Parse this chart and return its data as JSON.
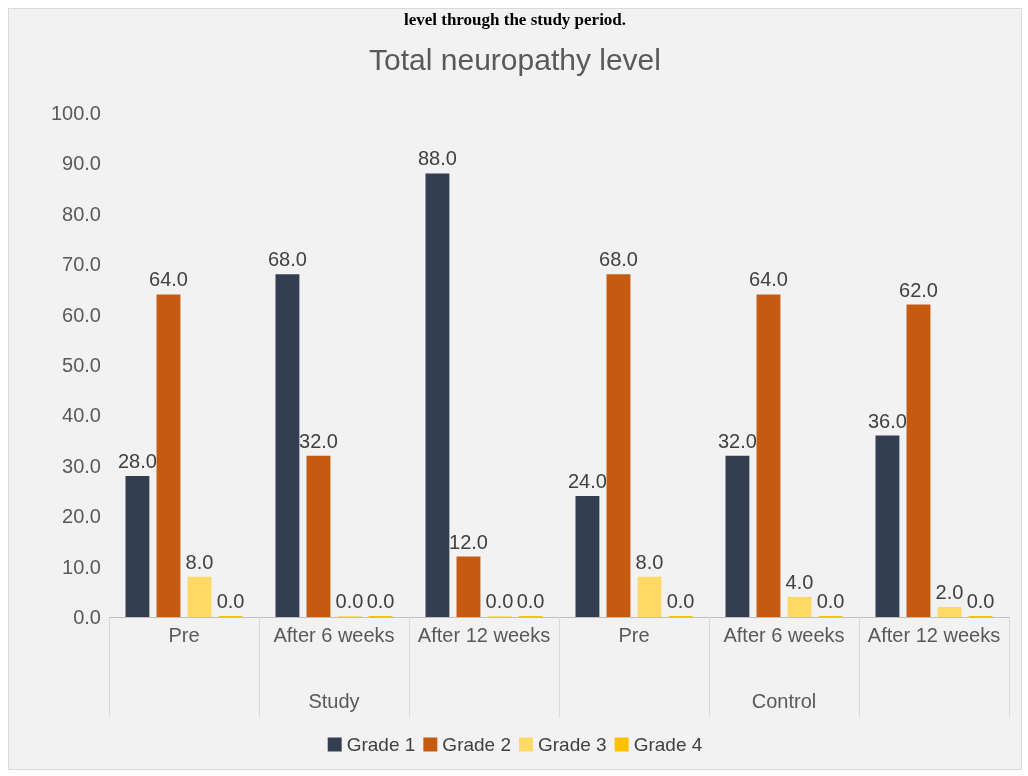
{
  "chart_data": {
    "type": "bar",
    "title": "Total neuropathy level",
    "categories": [
      "Pre",
      "After 6 weeks",
      "After 12 weeks",
      "Pre",
      "After 6 weeks",
      "After 12 weeks"
    ],
    "series": [
      {
        "name": "Grade 1",
        "color": "#333f50",
        "values": [
          28,
          68,
          88,
          24,
          32,
          36
        ],
        "value_labels": [
          "28.0",
          "68.0",
          "88.0",
          "24.0",
          "32.0",
          "36.0"
        ]
      },
      {
        "name": "Grade 2",
        "color": "#c55a11",
        "values": [
          64,
          32,
          12,
          68,
          64,
          62
        ],
        "value_labels": [
          "64.0",
          "32.0",
          "12.0",
          "68.0",
          "64.0",
          "62.0"
        ]
      },
      {
        "name": "Grade 3",
        "color": "#ffd966",
        "values": [
          8,
          0,
          0,
          8,
          4,
          2
        ],
        "value_labels": [
          "8.0",
          "0.0",
          "0.0",
          "8.0",
          "4.0",
          "2.0"
        ]
      },
      {
        "name": "Grade 4",
        "color": "#ffc000",
        "values": [
          0,
          0,
          0,
          0,
          0,
          0
        ],
        "value_labels": [
          "0.0",
          "0.0",
          "0.0",
          "0.0",
          "0.0",
          "0.0"
        ]
      }
    ],
    "ylim": [
      0,
      100
    ],
    "yticks": [
      {
        "value": 0,
        "label": "0.0"
      },
      {
        "value": 10,
        "label": "10.0"
      },
      {
        "value": 20,
        "label": "20.0"
      },
      {
        "value": 30,
        "label": "30.0"
      },
      {
        "value": 40,
        "label": "40.0"
      },
      {
        "value": 50,
        "label": "50.0"
      },
      {
        "value": 60,
        "label": "60.0"
      },
      {
        "value": 70,
        "label": "70.0"
      },
      {
        "value": 80,
        "label": "80.0"
      },
      {
        "value": 90,
        "label": "90.0"
      },
      {
        "value": 100,
        "label": "100.0"
      }
    ],
    "grid": false,
    "legend": "bottom",
    "annotations": [
      "level through the study period.",
      "Study",
      "Control"
    ]
  }
}
